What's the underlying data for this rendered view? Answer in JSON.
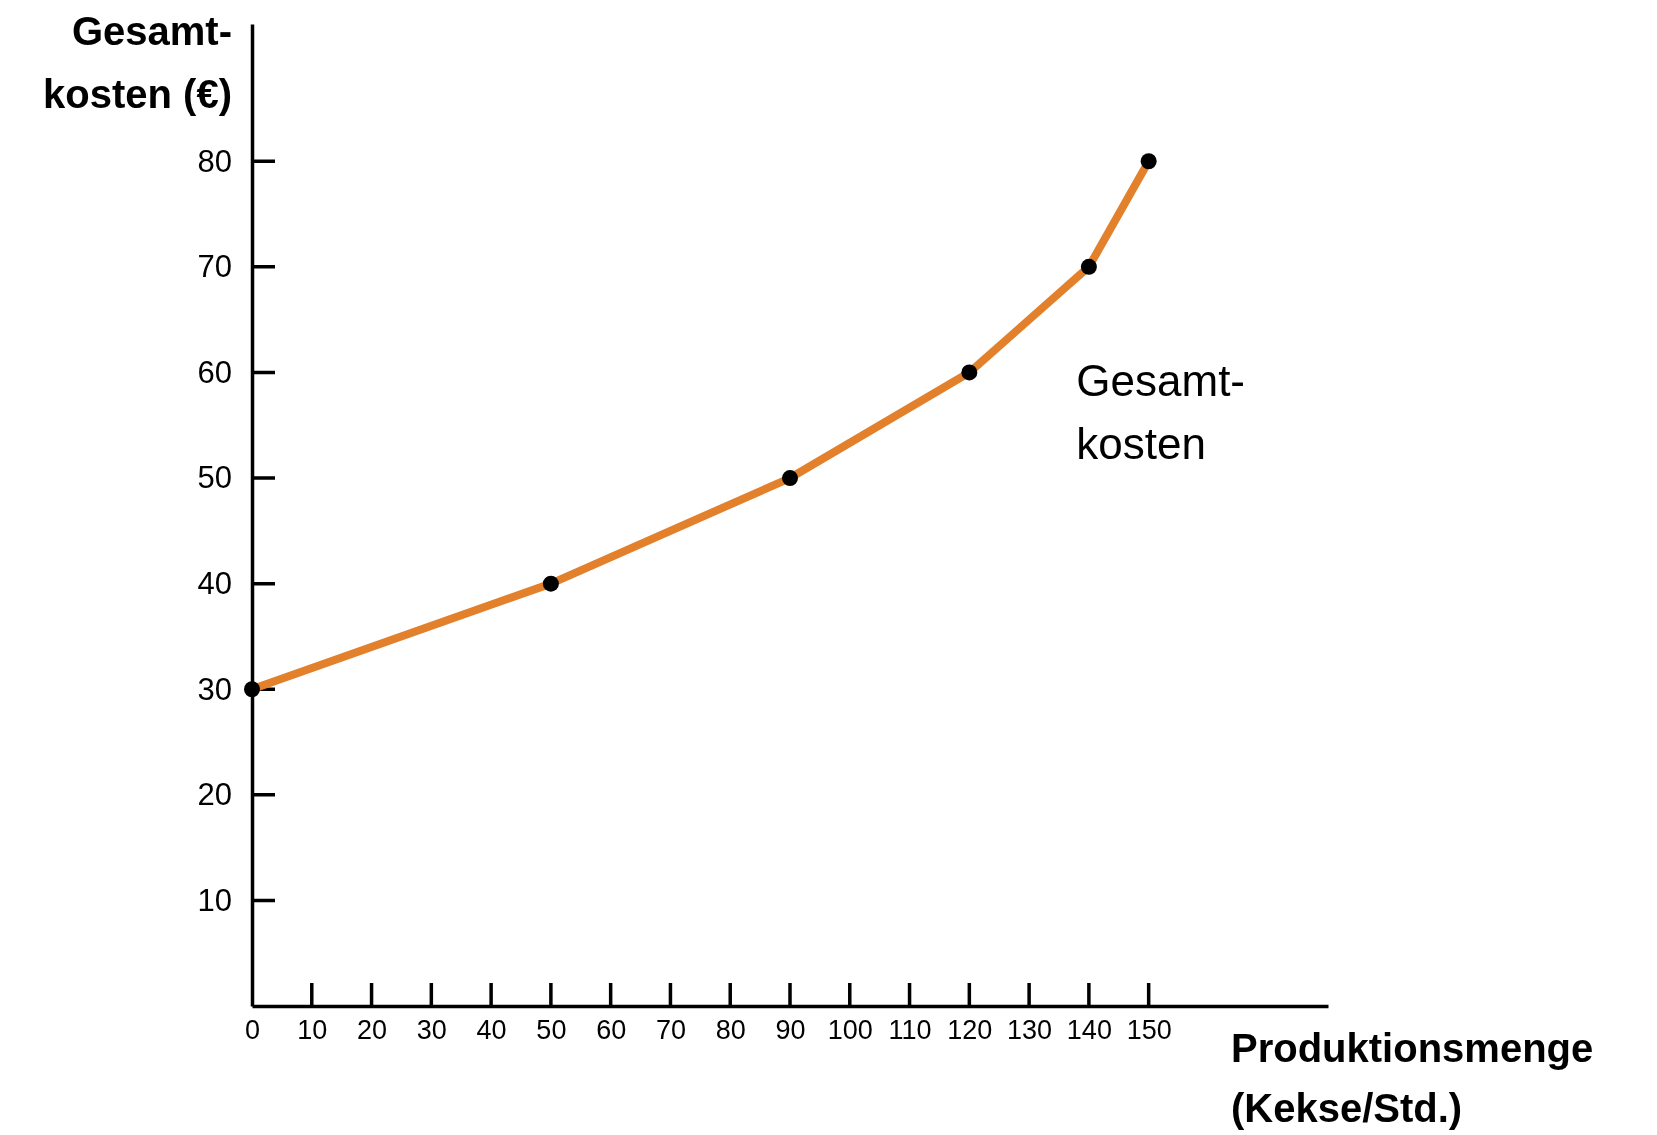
{
  "chart_data": {
    "type": "line",
    "xlabel": "Produktionsmenge\n(Kekse/Std.)",
    "ylabel": "Gesamt-\nkosten (€)",
    "x": [
      0,
      50,
      90,
      120,
      140,
      150
    ],
    "series": [
      {
        "name": "Gesamt-\nkosten",
        "color": "#e3802b",
        "values": [
          30,
          40,
          50,
          60,
          70,
          80
        ]
      }
    ],
    "xlim": [
      0,
      180
    ],
    "ylim": [
      0,
      93
    ],
    "xticks": [
      {
        "value": 0,
        "label": "0"
      },
      10,
      20,
      30,
      40,
      50,
      60,
      70,
      80,
      90,
      100,
      110,
      120,
      130,
      140,
      150
    ],
    "yticks": [
      10,
      20,
      30,
      40,
      50,
      60,
      70,
      80
    ],
    "marker": "circle"
  }
}
